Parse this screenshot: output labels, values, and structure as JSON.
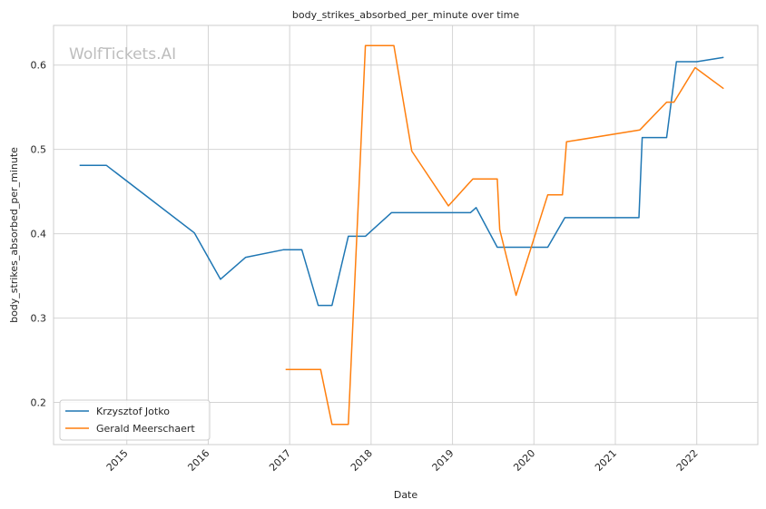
{
  "chart_data": {
    "type": "line",
    "title": "body_strikes_absorbed_per_minute over time",
    "xlabel": "Date",
    "ylabel": "body_strikes_absorbed_per_minute",
    "watermark": "WolfTickets.AI",
    "grid": true,
    "legend_position": "bottom-left",
    "xlim": [
      2014.1,
      2022.75
    ],
    "ylim": [
      0.15,
      0.647
    ],
    "x_ticks": [
      2015,
      2016,
      2017,
      2018,
      2019,
      2020,
      2021,
      2022
    ],
    "x_tick_labels": [
      "2015",
      "2016",
      "2017",
      "2018",
      "2019",
      "2020",
      "2021",
      "2022"
    ],
    "y_ticks": [
      0.2,
      0.3,
      0.4,
      0.5,
      0.6
    ],
    "y_tick_labels": [
      "0.2",
      "0.3",
      "0.4",
      "0.5",
      "0.6"
    ],
    "series": [
      {
        "name": "Krzysztof Jotko",
        "color": "#1f77b4",
        "x": [
          2014.42,
          2014.75,
          2015.83,
          2016.15,
          2016.46,
          2016.92,
          2017.15,
          2017.35,
          2017.52,
          2017.72,
          2017.93,
          2018.25,
          2018.5,
          2019.0,
          2019.22,
          2019.29,
          2019.35,
          2019.55,
          2019.8,
          2020.17,
          2020.38,
          2020.75,
          2021.29,
          2021.33,
          2021.63,
          2021.75,
          2022.0,
          2022.33
        ],
        "y": [
          0.481,
          0.481,
          0.401,
          0.346,
          0.372,
          0.381,
          0.381,
          0.315,
          0.315,
          0.397,
          0.397,
          0.425,
          0.425,
          0.425,
          0.425,
          0.431,
          0.42,
          0.384,
          0.384,
          0.384,
          0.419,
          0.419,
          0.419,
          0.514,
          0.514,
          0.604,
          0.604,
          0.609
        ]
      },
      {
        "name": "Gerald Meerschaert",
        "color": "#ff7f0e",
        "x": [
          2016.95,
          2017.38,
          2017.52,
          2017.72,
          2017.93,
          2018.28,
          2018.5,
          2018.95,
          2019.25,
          2019.55,
          2019.58,
          2019.78,
          2020.17,
          2020.35,
          2020.4,
          2021.3,
          2021.63,
          2021.72,
          2021.98,
          2022.33
        ],
        "y": [
          0.239,
          0.239,
          0.174,
          0.174,
          0.623,
          0.623,
          0.498,
          0.433,
          0.465,
          0.465,
          0.405,
          0.327,
          0.446,
          0.446,
          0.509,
          0.523,
          0.556,
          0.556,
          0.597,
          0.572
        ]
      }
    ]
  }
}
